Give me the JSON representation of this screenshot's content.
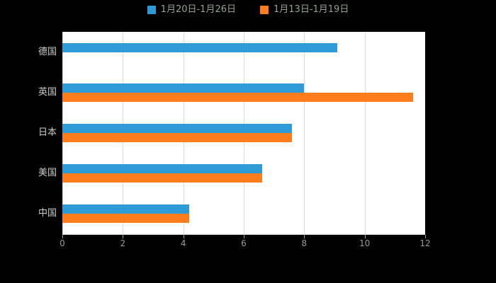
{
  "chart_data": {
    "type": "bar",
    "orientation": "horizontal",
    "title": "",
    "xlabel": "",
    "ylabel": "",
    "categories": [
      "德国",
      "英国",
      "日本",
      "美国",
      "中国"
    ],
    "series": [
      {
        "name": "1月20日-1月26日",
        "color": "#2E9BD6",
        "values": [
          9.1,
          8,
          7.6,
          6.6,
          4.2
        ]
      },
      {
        "name": "1月13日-1月19日",
        "color": "#FB7D1B",
        "values": [
          null,
          11.6,
          7.6,
          6.6,
          4.2
        ]
      }
    ],
    "xlim": [
      0,
      12
    ],
    "xticks": [
      0,
      2,
      4,
      6,
      8,
      10,
      12
    ],
    "grid": true,
    "legend_position": "top",
    "plot_background": "#ffffff",
    "page_background": "#000000"
  }
}
